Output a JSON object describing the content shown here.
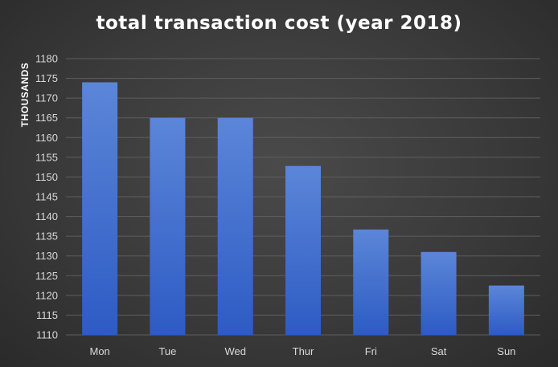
{
  "chart_data": {
    "type": "bar",
    "title": "total transaction cost (year 2018)",
    "xlabel": "",
    "ylabel": "THOUSANDS",
    "categories": [
      "Mon",
      "Tue",
      "Wed",
      "Thur",
      "Fri",
      "Sat",
      "Sun"
    ],
    "values": [
      1174,
      1165,
      1165,
      1152.8,
      1136.7,
      1131,
      1122.5
    ],
    "ylim": [
      1110,
      1180
    ],
    "yticks": [
      1110,
      1115,
      1120,
      1125,
      1130,
      1135,
      1140,
      1145,
      1150,
      1155,
      1160,
      1165,
      1170,
      1175,
      1180
    ],
    "grid": true,
    "legend": "none",
    "colors": {
      "bar_top": "#5b86d8",
      "bar_bottom": "#2e5bc4",
      "grid": "#5e5e5e",
      "background": "#3c3c3c"
    }
  }
}
